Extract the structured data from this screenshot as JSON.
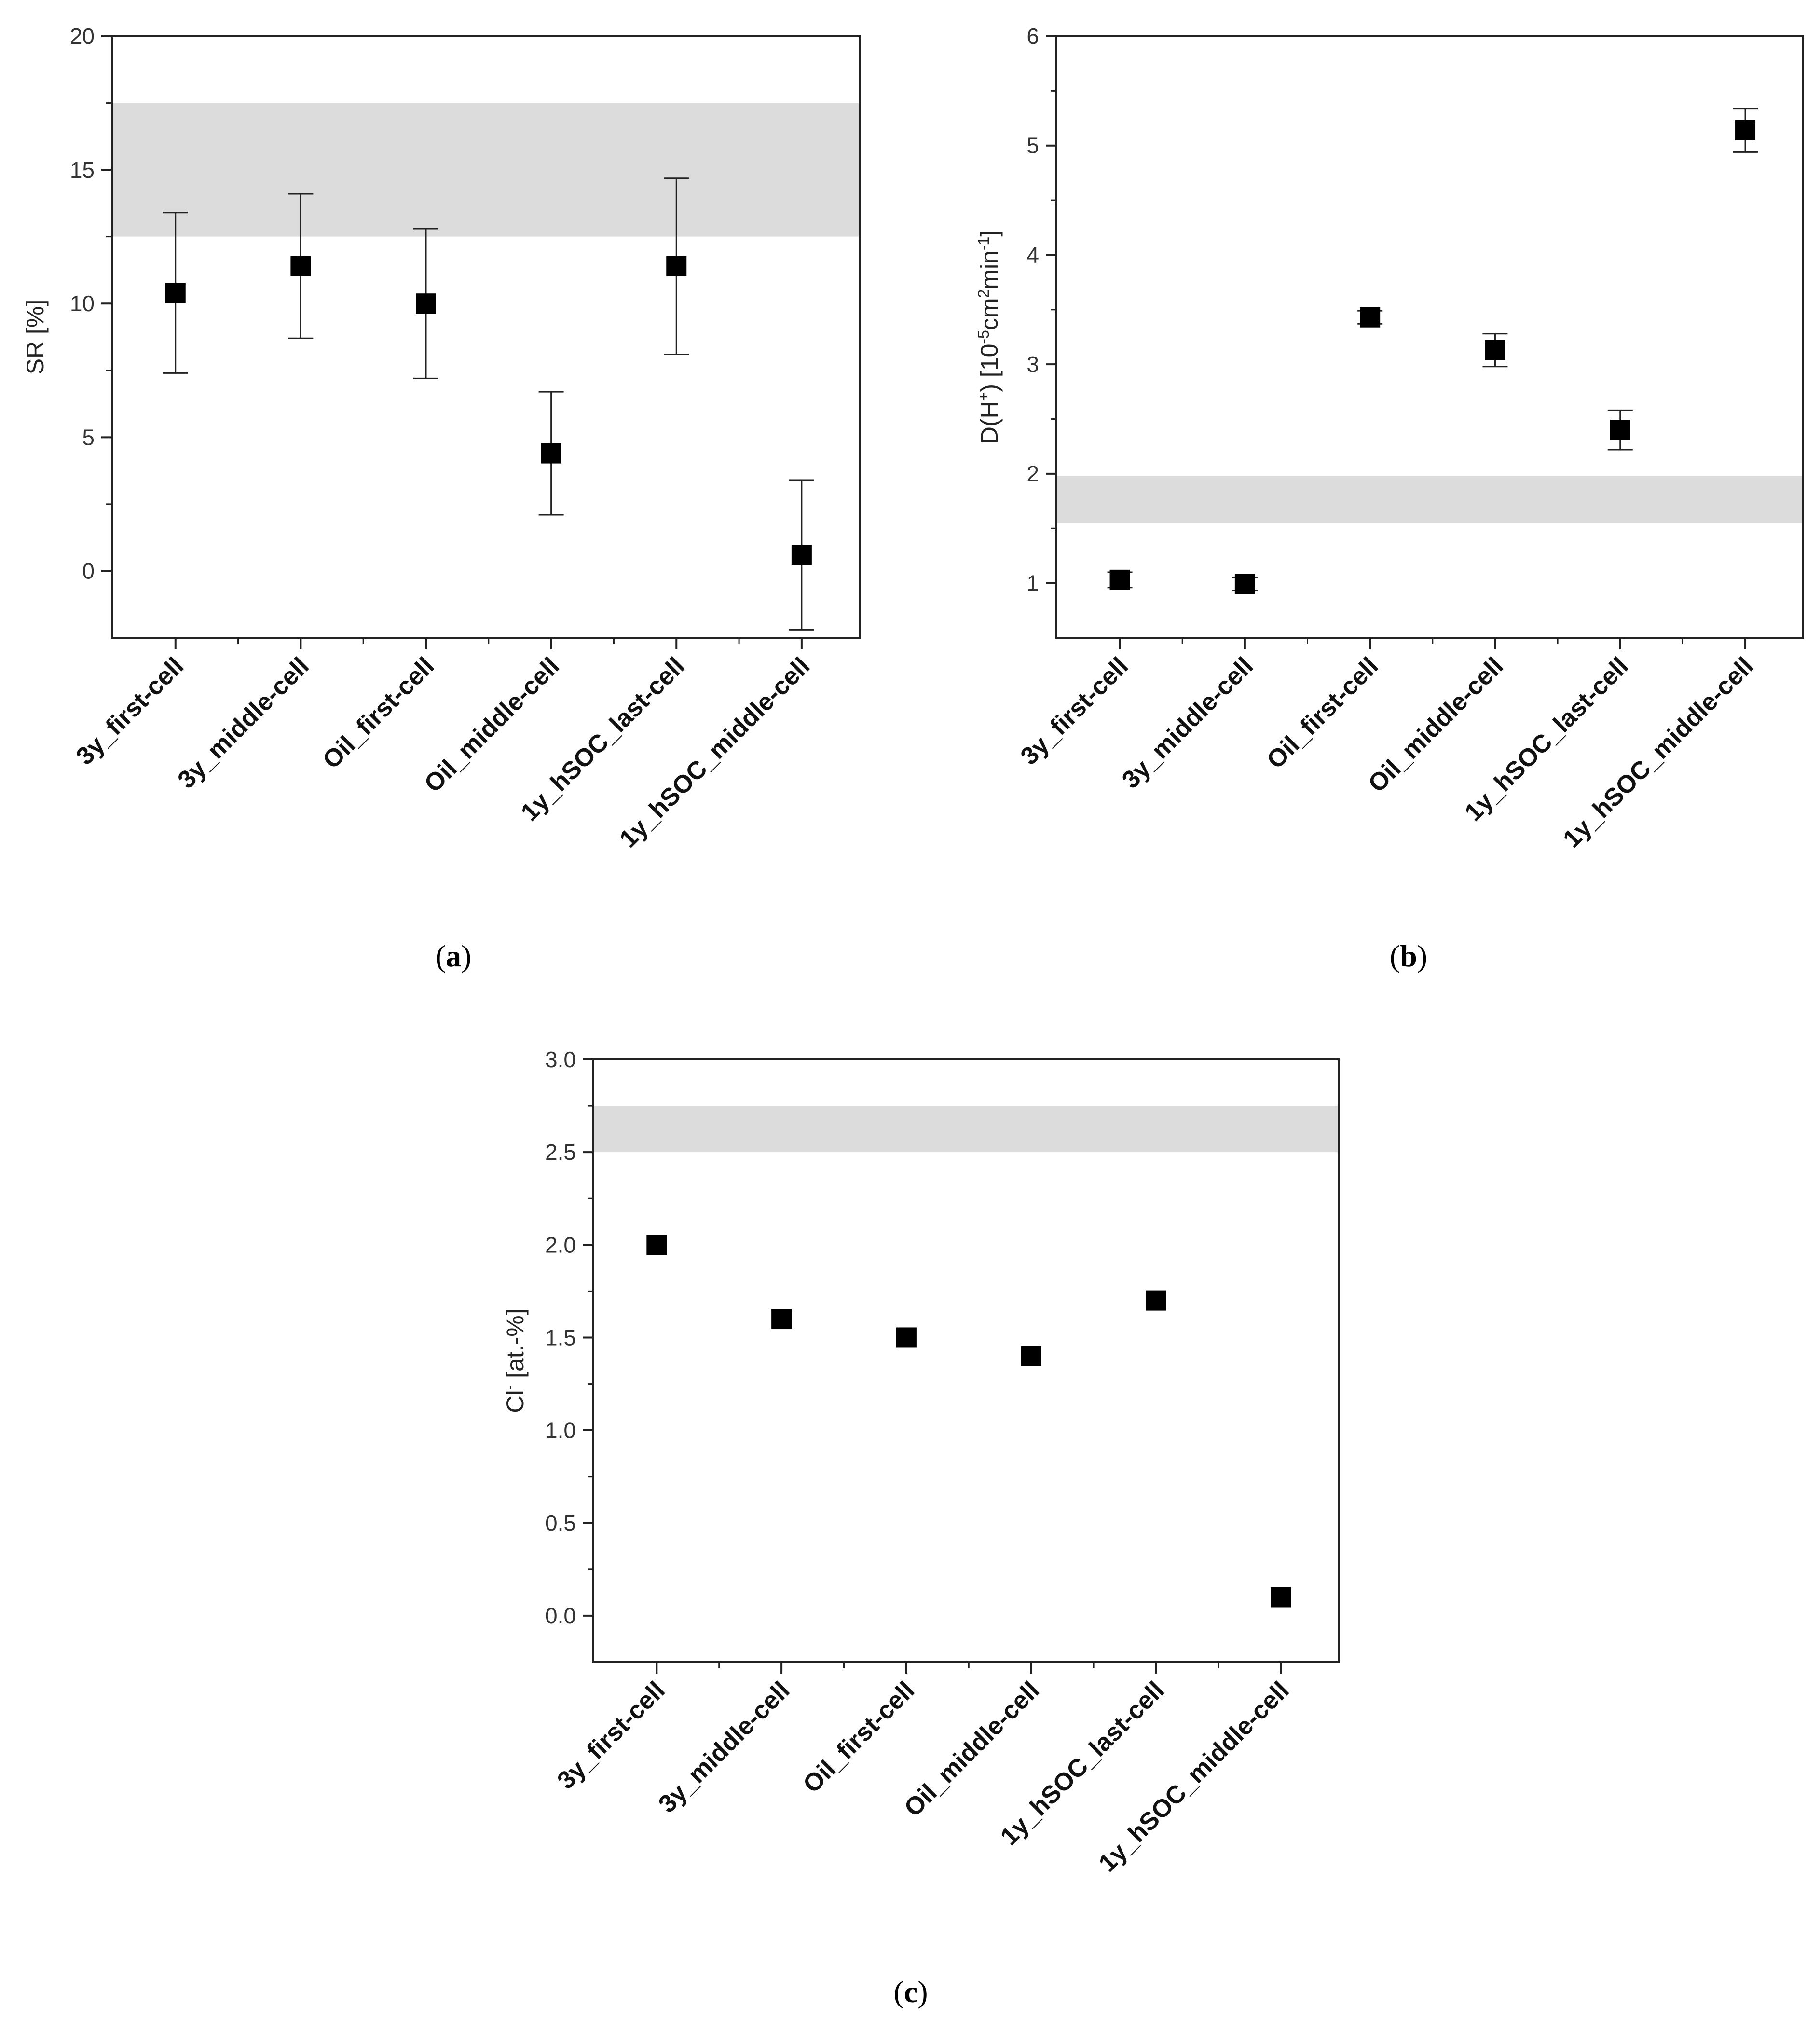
{
  "chart_data": [
    {
      "type": "scatter",
      "panel": "a",
      "categories": [
        "3y_first-cell",
        "3y_middle-cell",
        "Oil_first-cell",
        "Oil_middle-cell",
        "1y_hSOC_last-cell",
        "1y_hSOC_middle-cell"
      ],
      "values": [
        10.4,
        11.4,
        10.0,
        4.4,
        11.4,
        0.6
      ],
      "errors": [
        3.0,
        2.7,
        2.8,
        2.3,
        3.3,
        2.8
      ],
      "ylabel": "SR [%]",
      "ylim": [
        -2.5,
        20
      ],
      "yticks": [
        0,
        5,
        10,
        15,
        20
      ],
      "reference_band": [
        12.5,
        17.5
      ],
      "grid": false,
      "panel_label": "a"
    },
    {
      "type": "scatter",
      "panel": "b",
      "categories": [
        "3y_first-cell",
        "3y_middle-cell",
        "Oil_first-cell",
        "Oil_middle-cell",
        "1y_hSOC_last-cell",
        "1y_hSOC_middle-cell"
      ],
      "values": [
        1.03,
        0.99,
        3.43,
        3.13,
        2.4,
        5.14
      ],
      "errors": [
        0.07,
        0.06,
        0.06,
        0.15,
        0.18,
        0.2
      ],
      "ylabel": "D(H",
      "ylabel_parts": {
        "base": "D(H",
        "sup1": "+",
        "mid1": ") [10",
        "sup2": "-5",
        "mid2": "cm",
        "sup3": "2",
        "mid3": "min",
        "sup4": "-1",
        "end": "]"
      },
      "ylim": [
        0.5,
        6
      ],
      "yticks": [
        1,
        2,
        3,
        4,
        5,
        6
      ],
      "reference_band": [
        1.55,
        1.98
      ],
      "grid": false,
      "panel_label": "b"
    },
    {
      "type": "scatter",
      "panel": "c",
      "categories": [
        "3y_first-cell",
        "3y_middle-cell",
        "Oil_first-cell",
        "Oil_middle-cell",
        "1y_hSOC_last-cell",
        "1y_hSOC_middle-cell"
      ],
      "values": [
        2.0,
        1.6,
        1.5,
        1.4,
        1.7,
        0.1
      ],
      "errors": [
        0,
        0,
        0,
        0,
        0,
        0
      ],
      "ylabel_parts": {
        "base": "Cl",
        "sup1": "-",
        "end": " [at.-%]"
      },
      "ylim": [
        -0.25,
        3.0
      ],
      "yticks": [
        0.0,
        0.5,
        1.0,
        1.5,
        2.0,
        2.5,
        3.0
      ],
      "ytick_labels": [
        "0.0",
        "0.5",
        "1.0",
        "1.5",
        "2.0",
        "2.5",
        "3.0"
      ],
      "reference_band": [
        2.5,
        2.75
      ],
      "grid": false,
      "panel_label": "c"
    }
  ]
}
